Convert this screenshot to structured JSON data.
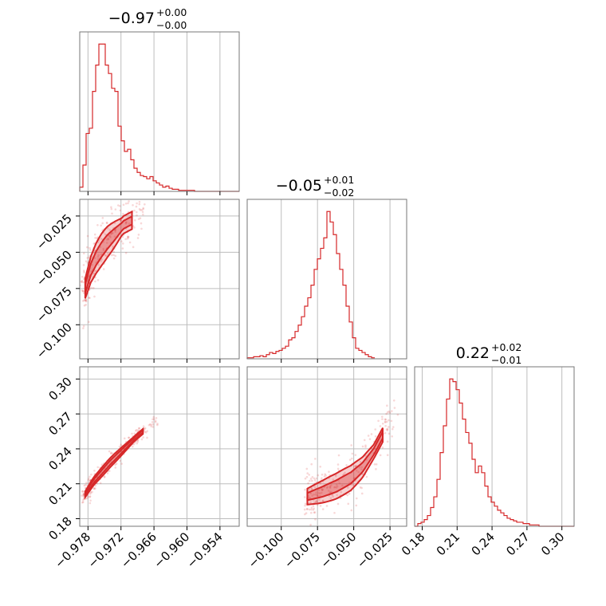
{
  "chart_data": {
    "type": "corner",
    "color": "#d62728",
    "parameters": [
      {
        "title": {
          "median": "−0.97",
          "plus": "+0.00",
          "minus": "−0.00"
        },
        "range": [
          -0.9795,
          -0.9505
        ],
        "ticks": [
          -0.978,
          -0.972,
          -0.966,
          -0.96,
          -0.954
        ],
        "tick_labels": [
          "−0.978",
          "−0.972",
          "−0.966",
          "−0.960",
          "−0.954"
        ]
      },
      {
        "title": {
          "median": "−0.05",
          "plus": "+0.01",
          "minus": "−0.02"
        },
        "range": [
          -0.1235,
          -0.0135
        ],
        "ticks": [
          -0.1,
          -0.075,
          -0.05,
          -0.025
        ],
        "tick_labels": [
          "−0.100",
          "−0.075",
          "−0.050",
          "−0.025"
        ]
      },
      {
        "title": {
          "median": "0.22",
          "plus": "+0.02",
          "minus": "−0.01"
        },
        "range": [
          0.1735,
          0.3105
        ],
        "ticks": [
          0.18,
          0.21,
          0.24,
          0.27,
          0.3
        ],
        "tick_labels": [
          "0.18",
          "0.21",
          "0.24",
          "0.27",
          "0.30"
        ]
      }
    ],
    "histograms": [
      {
        "bin_start": -0.9795,
        "bin_width": 0.00058,
        "counts": [
          4,
          25,
          55,
          60,
          95,
          120,
          140,
          140,
          120,
          112,
          98,
          95,
          62,
          48,
          38,
          40,
          30,
          22,
          18,
          15,
          14,
          12,
          14,
          10,
          8,
          6,
          4,
          5,
          3,
          2,
          2,
          1,
          1,
          1,
          1,
          1,
          0,
          0,
          0,
          0,
          0,
          0,
          0,
          0,
          0,
          0,
          0,
          0,
          0,
          0
        ]
      },
      {
        "bin_start": -0.1235,
        "bin_width": 0.0022,
        "counts": [
          1,
          1,
          2,
          2,
          3,
          2,
          4,
          6,
          5,
          7,
          8,
          10,
          12,
          18,
          20,
          26,
          32,
          40,
          50,
          58,
          70,
          85,
          95,
          105,
          115,
          140,
          130,
          118,
          100,
          85,
          70,
          50,
          35,
          20,
          10,
          8,
          6,
          4,
          2,
          1
        ]
      },
      {
        "bin_start": 0.1735,
        "bin_width": 0.00274,
        "counts": [
          0,
          2,
          3,
          5,
          8,
          14,
          22,
          35,
          55,
          75,
          95,
          110,
          108,
          102,
          92,
          80,
          70,
          62,
          50,
          40,
          45,
          40,
          30,
          22,
          18,
          15,
          12,
          10,
          8,
          6,
          5,
          4,
          3,
          3,
          2,
          2,
          1,
          1,
          1,
          0,
          0,
          0,
          0,
          0,
          0,
          0,
          0,
          0,
          0,
          0
        ]
      }
    ],
    "pairs": [
      {
        "x_param": 0,
        "y_param": 1,
        "curve": {
          "x": [
            -0.9785,
            -0.9775,
            -0.9765,
            -0.9755,
            -0.9745,
            -0.9735,
            -0.9725,
            -0.9715,
            -0.97
          ],
          "y": [
            -0.075,
            -0.062,
            -0.054,
            -0.048,
            -0.043,
            -0.039,
            -0.035,
            -0.031,
            -0.028
          ]
        },
        "band_outer": 0.011,
        "band_inner": 0.005
      },
      {
        "x_param": 0,
        "y_param": 2,
        "curve": {
          "x": [
            -0.9785,
            -0.977,
            -0.9755,
            -0.974,
            -0.9725,
            -0.971,
            -0.9695,
            -0.968
          ],
          "y": [
            0.201,
            0.212,
            0.22,
            0.228,
            0.235,
            0.242,
            0.249,
            0.255
          ]
        },
        "band_outer": 0.004,
        "band_inner": 0.0018
      },
      {
        "x_param": 1,
        "y_param": 2,
        "curve": {
          "x": [
            -0.082,
            -0.072,
            -0.062,
            -0.052,
            -0.044,
            -0.036,
            -0.03
          ],
          "y": [
            0.199,
            0.203,
            0.208,
            0.215,
            0.224,
            0.238,
            0.252
          ]
        },
        "band_outer": 0.011,
        "band_inner": 0.005
      }
    ]
  }
}
